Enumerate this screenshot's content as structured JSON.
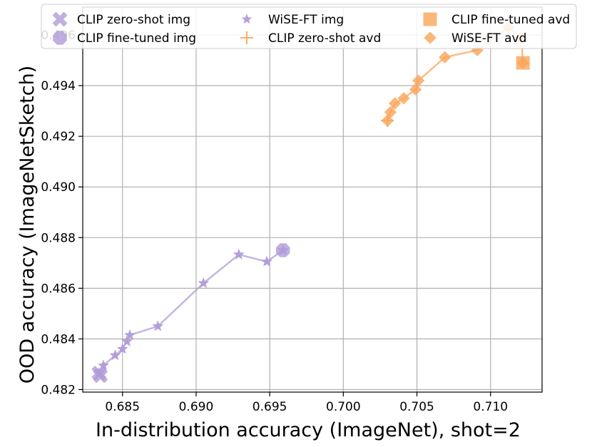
{
  "chart_data": {
    "type": "scatter",
    "title": "",
    "xlabel": "In-distribution accuracy (ImageNet), shot=2",
    "ylabel": "OOD accuracy (ImageNetSketch)",
    "xlim": [
      0.6823,
      0.7135
    ],
    "ylim": [
      0.4819,
      0.4971
    ],
    "xticks": [
      0.685,
      0.69,
      0.695,
      0.7,
      0.705,
      0.71
    ],
    "yticks": [
      0.482,
      0.484,
      0.486,
      0.488,
      0.49,
      0.492,
      0.494,
      0.496
    ],
    "grid": true,
    "legend_position": "top",
    "series": [
      {
        "name": "CLIP zero-shot img",
        "marker": "x-thick",
        "color": "#b19cd9",
        "points": [
          [
            0.6834,
            0.48265
          ],
          [
            0.6835,
            0.48255
          ]
        ]
      },
      {
        "name": "CLIP fine-tuned img",
        "marker": "octagon",
        "color": "#b19cd9",
        "points": [
          [
            0.6959,
            0.4875
          ]
        ]
      },
      {
        "name": "WiSE-FT img",
        "marker": "star",
        "color": "#b19cd9",
        "line": true,
        "points": [
          [
            0.6834,
            0.48265
          ],
          [
            0.6837,
            0.48295
          ],
          [
            0.6845,
            0.48335
          ],
          [
            0.685,
            0.4836
          ],
          [
            0.6853,
            0.4839
          ],
          [
            0.6855,
            0.48415
          ],
          [
            0.6874,
            0.4845
          ],
          [
            0.6905,
            0.4862
          ],
          [
            0.6929,
            0.48733
          ],
          [
            0.6948,
            0.48705
          ],
          [
            0.6959,
            0.4875
          ]
        ]
      },
      {
        "name": "CLIP zero-shot avd",
        "marker": "plus",
        "color": "#f9a65a",
        "points": [
          [
            0.703,
            0.49262
          ]
        ]
      },
      {
        "name": "CLIP fine-tuned avd",
        "marker": "square",
        "color": "#f9a65a",
        "points": [
          [
            0.7122,
            0.4949
          ]
        ]
      },
      {
        "name": "WiSE-FT avd",
        "marker": "diamond",
        "color": "#f9a65a",
        "line": true,
        "points": [
          [
            0.703,
            0.49262
          ],
          [
            0.7032,
            0.49295
          ],
          [
            0.7035,
            0.4933
          ],
          [
            0.7041,
            0.4935
          ],
          [
            0.7049,
            0.49385
          ],
          [
            0.7051,
            0.4942
          ],
          [
            0.7069,
            0.49512
          ],
          [
            0.7091,
            0.4954
          ],
          [
            0.7112,
            0.4963
          ],
          [
            0.7121,
            0.4959
          ],
          [
            0.7122,
            0.4949
          ]
        ]
      }
    ]
  }
}
